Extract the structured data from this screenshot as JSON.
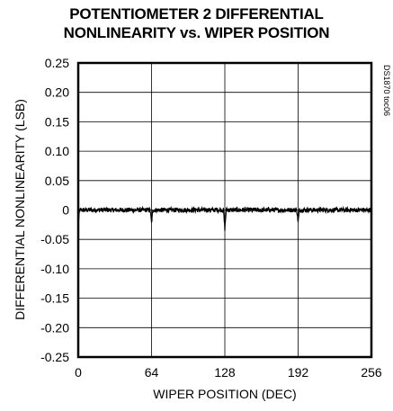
{
  "chart_data": {
    "type": "line",
    "title_line1": "POTENTIOMETER 2 DIFFERENTIAL",
    "title_line2": "NONLINEARITY vs. WIPER POSITION",
    "xlabel": "WIPER POSITION (DEC)",
    "ylabel": "DIFFERENTIAL NONLINEARITY (LSB)",
    "xlim": [
      0,
      256
    ],
    "ylim": [
      -0.25,
      0.25
    ],
    "x_ticks": [
      "0",
      "64",
      "128",
      "192",
      "256"
    ],
    "y_ticks": [
      "0.25",
      "0.20",
      "0.15",
      "0.10",
      "0.05",
      "0",
      "-0.05",
      "-0.10",
      "-0.15",
      "-0.20",
      "-0.25"
    ],
    "grid": true,
    "code_label": "DS1870 toc06",
    "series": [
      {
        "baseline": 0.0,
        "noise_amplitude": 0.004,
        "spikes": [
          {
            "x": 0,
            "y": -0.025
          },
          {
            "x": 64,
            "y": -0.022
          },
          {
            "x": 128,
            "y": -0.032
          },
          {
            "x": 192,
            "y": -0.02
          }
        ]
      }
    ]
  }
}
